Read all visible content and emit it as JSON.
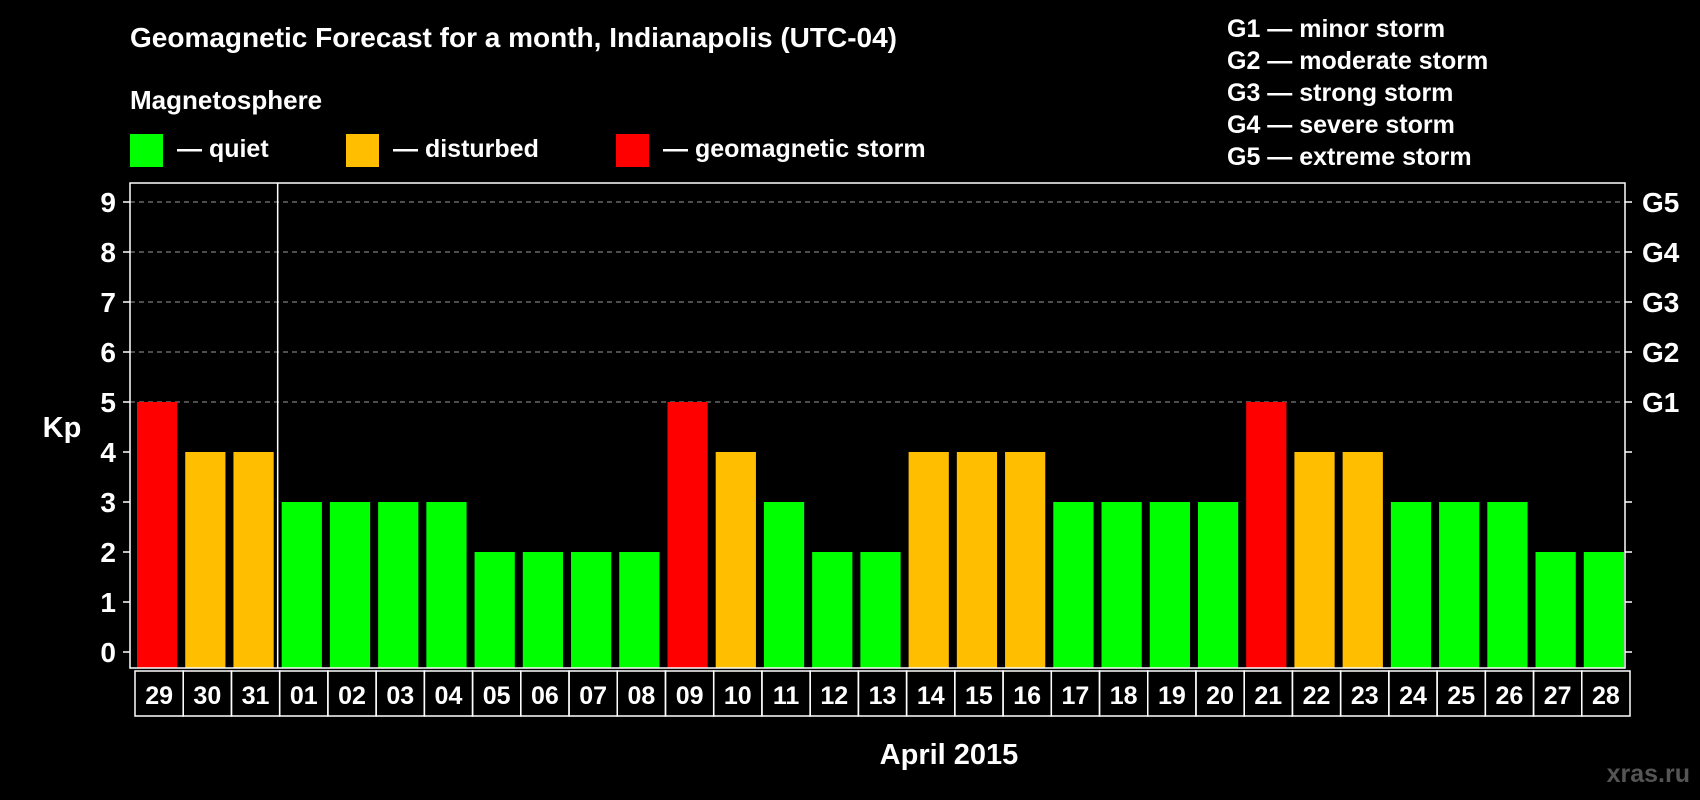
{
  "chart_data": {
    "type": "bar",
    "title": "Geomagnetic Forecast for a month, Indianapolis (UTC-04)",
    "legend": {
      "heading": "Magnetosphere",
      "items": [
        {
          "label": "— quiet",
          "color": "#00ff00"
        },
        {
          "label": "— disturbed",
          "color": "#ffbf00"
        },
        {
          "label": "— geomagnetic storm",
          "color": "#ff0000"
        }
      ]
    },
    "storm_scale": [
      "G1 — minor storm",
      "G2 — moderate storm",
      "G3 — strong storm",
      "G4 — severe storm",
      "G5 — extreme storm"
    ],
    "ylabel": "Kp",
    "xlabel": "April 2015",
    "ylim": [
      0,
      9
    ],
    "y_ticks": [
      0,
      1,
      2,
      3,
      4,
      5,
      6,
      7,
      8,
      9
    ],
    "right_ticks": [
      {
        "kp": 5,
        "label": "G1"
      },
      {
        "kp": 6,
        "label": "G2"
      },
      {
        "kp": 7,
        "label": "G3"
      },
      {
        "kp": 8,
        "label": "G4"
      },
      {
        "kp": 9,
        "label": "G5"
      }
    ],
    "grid": "dashed horizontal at Kp 5-9",
    "categories": [
      "29",
      "30",
      "31",
      "01",
      "02",
      "03",
      "04",
      "05",
      "06",
      "07",
      "08",
      "09",
      "10",
      "11",
      "12",
      "13",
      "14",
      "15",
      "16",
      "17",
      "18",
      "19",
      "20",
      "21",
      "22",
      "23",
      "24",
      "25",
      "26",
      "27",
      "28"
    ],
    "values": [
      5,
      4,
      4,
      3,
      3,
      3,
      3,
      2,
      2,
      2,
      2,
      5,
      4,
      3,
      2,
      2,
      4,
      4,
      4,
      3,
      3,
      3,
      3,
      5,
      4,
      4,
      3,
      3,
      3,
      2,
      2
    ],
    "month_divider_after": "31",
    "colors": {
      "quiet": "#00ff00",
      "disturbed": "#ffbf00",
      "storm": "#ff0000"
    }
  },
  "watermark": "xras.ru"
}
